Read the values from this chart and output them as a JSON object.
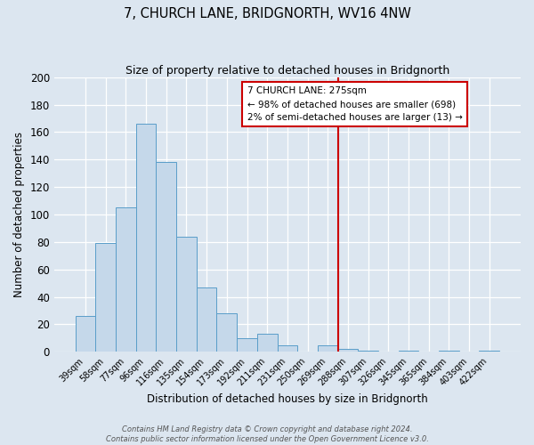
{
  "title": "7, CHURCH LANE, BRIDGNORTH, WV16 4NW",
  "subtitle": "Size of property relative to detached houses in Bridgnorth",
  "xlabel": "Distribution of detached houses by size in Bridgnorth",
  "ylabel": "Number of detached properties",
  "bin_labels": [
    "39sqm",
    "58sqm",
    "77sqm",
    "96sqm",
    "116sqm",
    "135sqm",
    "154sqm",
    "173sqm",
    "192sqm",
    "211sqm",
    "231sqm",
    "250sqm",
    "269sqm",
    "288sqm",
    "307sqm",
    "326sqm",
    "345sqm",
    "365sqm",
    "384sqm",
    "403sqm",
    "422sqm"
  ],
  "bar_heights": [
    26,
    79,
    105,
    166,
    138,
    84,
    47,
    28,
    10,
    13,
    5,
    0,
    5,
    2,
    1,
    0,
    1,
    0,
    1,
    0,
    1
  ],
  "bar_color": "#c5d8ea",
  "bar_edge_color": "#5a9ec9",
  "ylim": [
    0,
    200
  ],
  "yticks": [
    0,
    20,
    40,
    60,
    80,
    100,
    120,
    140,
    160,
    180,
    200
  ],
  "vline_color": "#cc0000",
  "annotation_title": "7 CHURCH LANE: 275sqm",
  "annotation_line1": "← 98% of detached houses are smaller (698)",
  "annotation_line2": "2% of semi-detached houses are larger (13) →",
  "annotation_box_color": "#ffffff",
  "annotation_box_edge": "#cc0000",
  "background_color": "#dce6f0",
  "grid_color": "#ffffff",
  "footer1": "Contains HM Land Registry data © Crown copyright and database right 2024.",
  "footer2": "Contains public sector information licensed under the Open Government Licence v3.0."
}
